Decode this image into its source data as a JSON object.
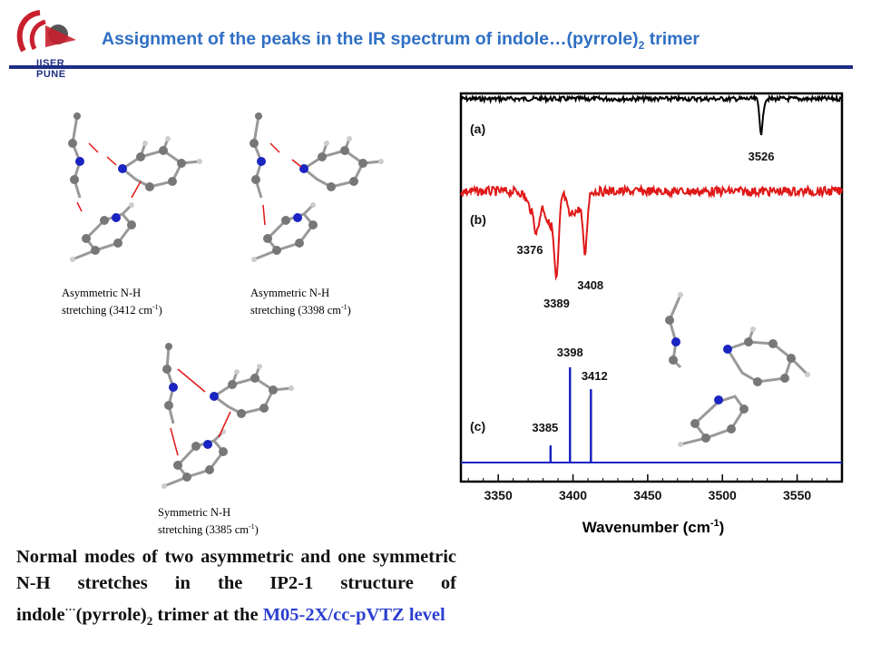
{
  "header": {
    "title_main": "Assignment of the peaks in the IR spectrum of indole…(pyrrole)",
    "title_sub": "2",
    "title_end": " trimer",
    "logo_text": "IISER PUNE",
    "logo_color": "#c8202e",
    "rule_color": "#1e2d84",
    "title_color": "#2f6fc4"
  },
  "structures": [
    {
      "label_line1": "Asymmetric N-H",
      "label_line2_pre": "stretching (3412 cm",
      "label_sup": "-1",
      "label_line2_post": ")"
    },
    {
      "label_line1": "Asymmetric N-H",
      "label_line2_pre": "stretching (3398 cm",
      "label_sup": "-1",
      "label_line2_post": ")"
    },
    {
      "label_line1": "Symmetric N-H",
      "label_line2_pre": "stretching (3385 cm",
      "label_sup": "-1",
      "label_line2_post": ")"
    }
  ],
  "description": {
    "part1": "Normal modes of two asymmetric and one symmetric N-H stretches in the IP2-1 structure of indole",
    "dots": "···",
    "part2": "(pyrrole)",
    "sub": "2",
    "part3": " trimer at the ",
    "highlight": "M05-2X/cc-pVTZ level",
    "highlight_color": "#2b3fd0"
  },
  "chart_data": {
    "type": "line",
    "xlabel": "Wavenumber (cm",
    "xlabel_sup": "-1",
    "xlabel_end": ")",
    "xlim": [
      3325,
      3580
    ],
    "xticks": [
      3350,
      3400,
      3450,
      3500,
      3550
    ],
    "grid": false,
    "panels": [
      {
        "label": "(a)",
        "color": "#000000",
        "peaks": [
          {
            "x": 3526,
            "label": "3526"
          }
        ]
      },
      {
        "label": "(b)",
        "color": "#e01818",
        "peaks": [
          {
            "x": 3376,
            "label": "3376"
          },
          {
            "x": 3389,
            "label": "3389"
          },
          {
            "x": 3408,
            "label": "3408"
          }
        ]
      },
      {
        "label": "(c)",
        "color": "#1a24c0",
        "sticks": [
          {
            "x": 3385,
            "intensity": 0.18,
            "label": "3385"
          },
          {
            "x": 3398,
            "intensity": 1.0,
            "label": "3398"
          },
          {
            "x": 3412,
            "intensity": 0.77,
            "label": "3412"
          }
        ]
      }
    ]
  }
}
